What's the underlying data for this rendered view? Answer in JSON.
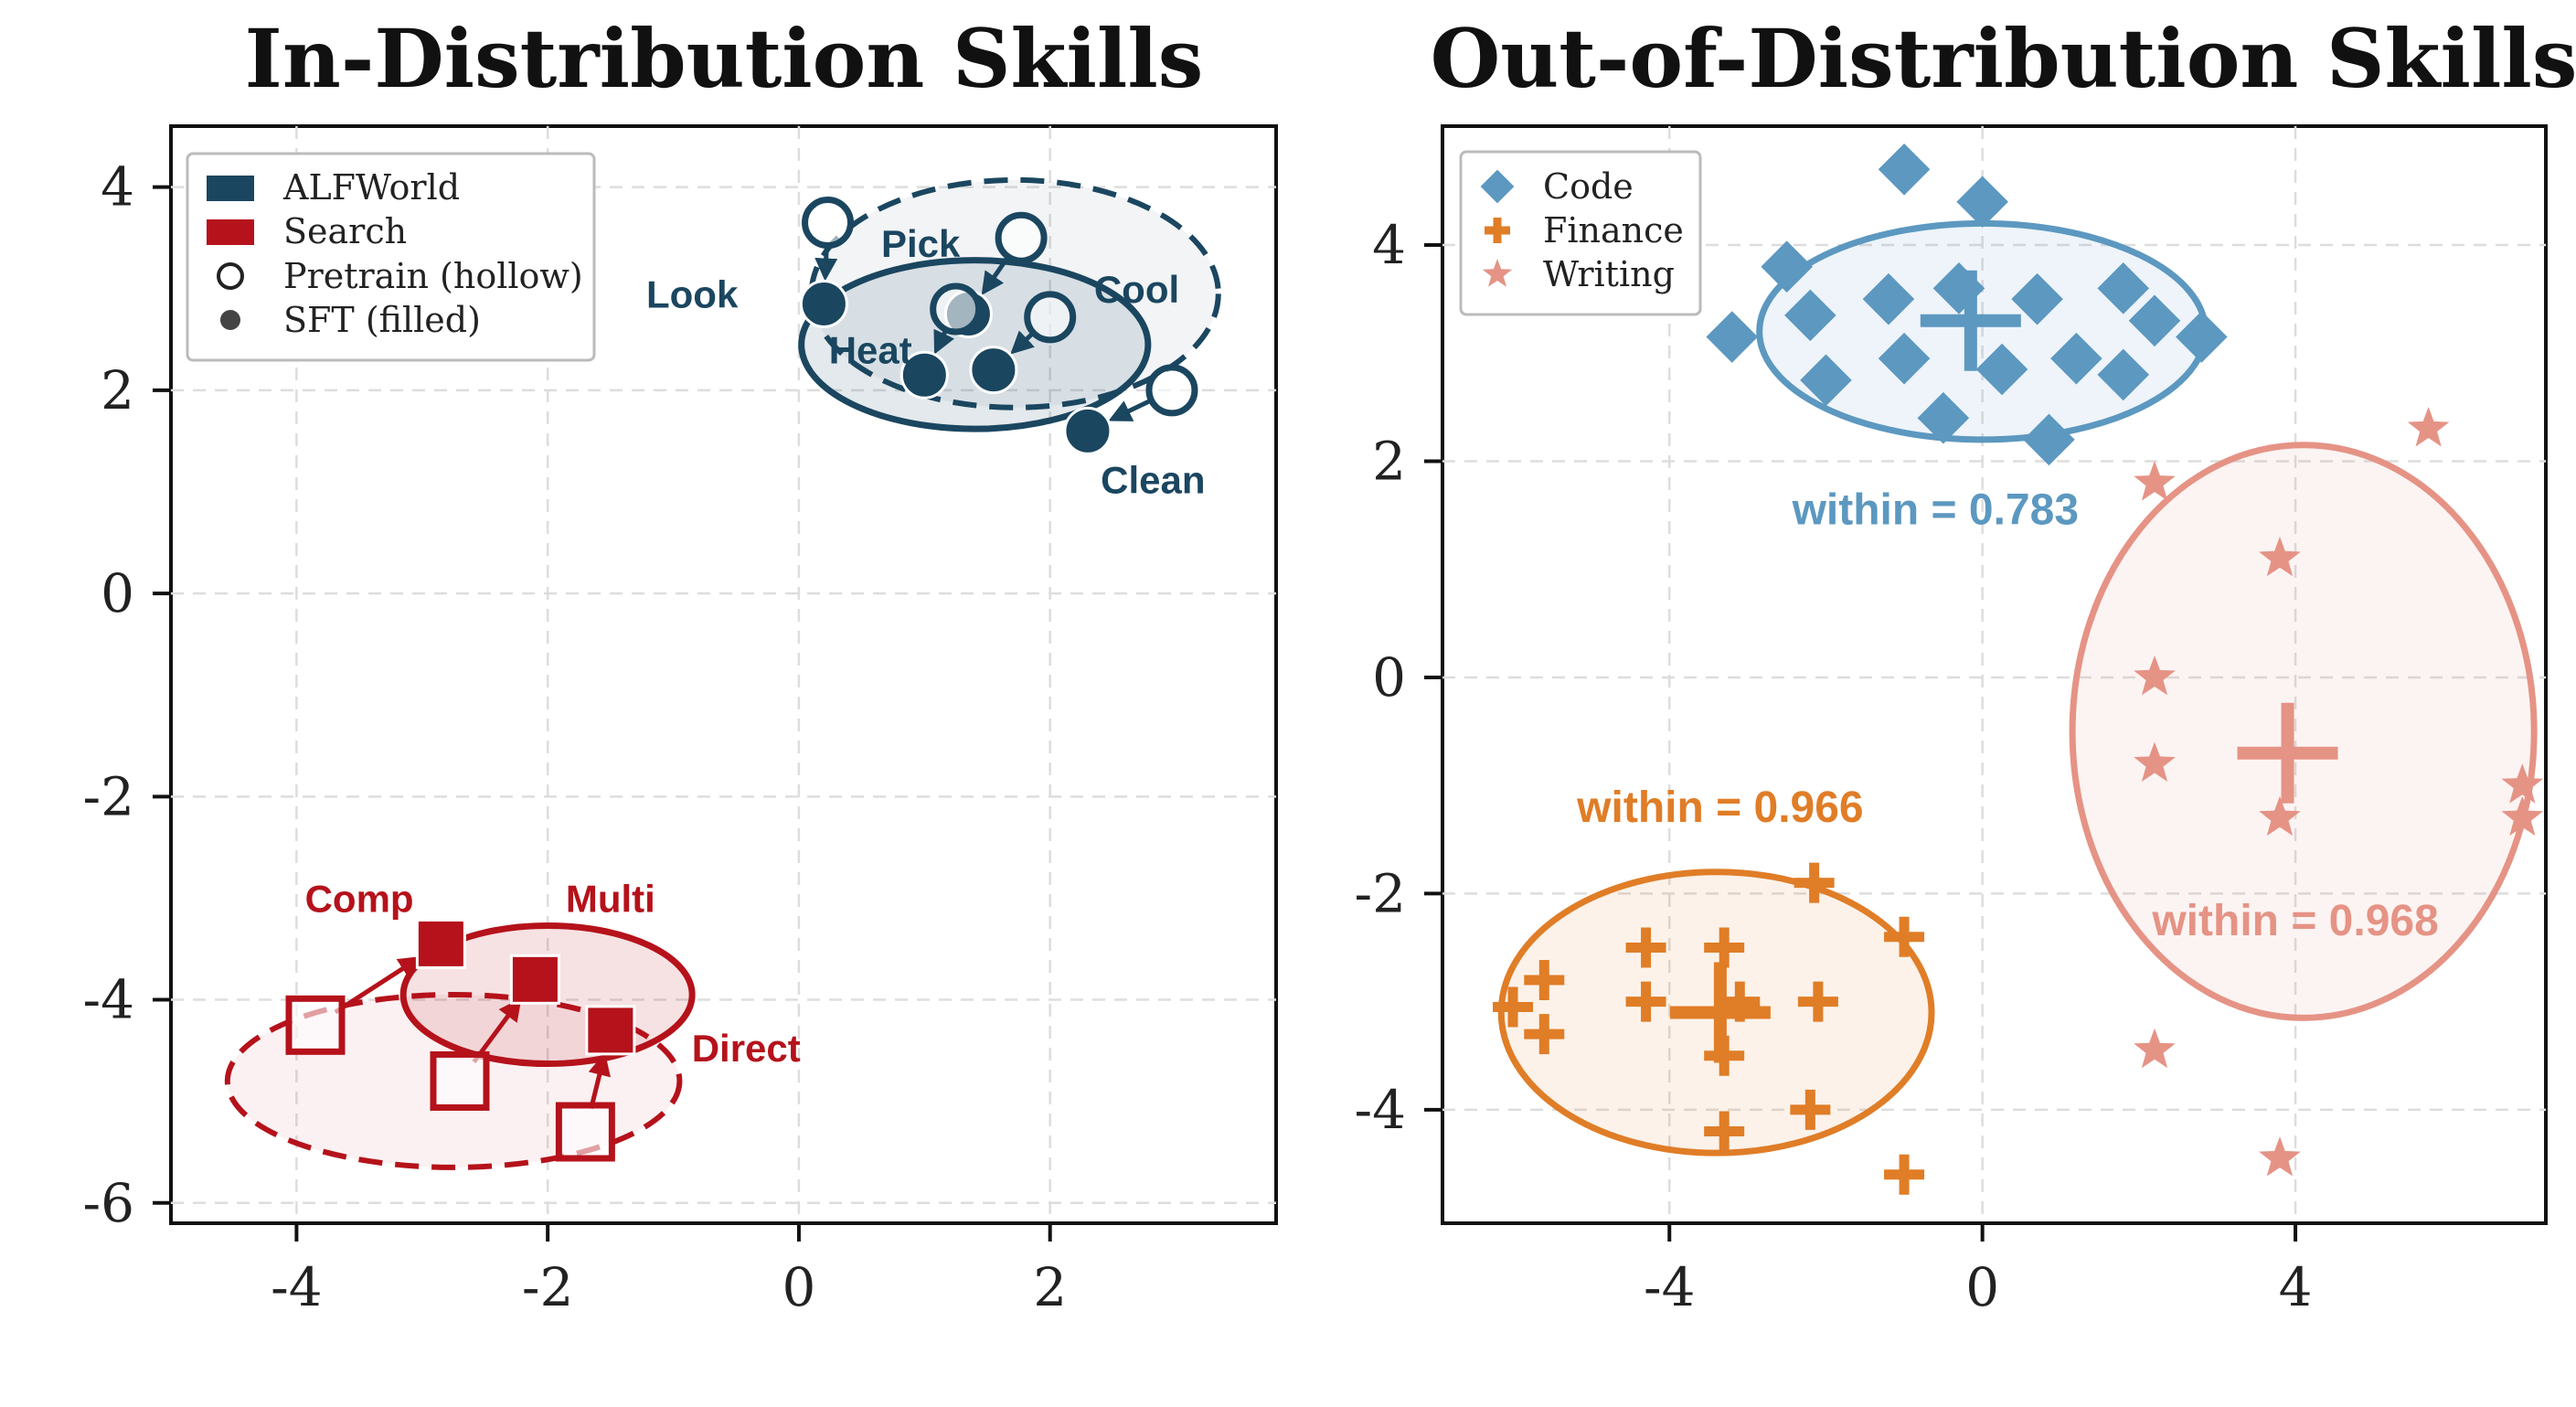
{
  "chart_data": [
    {
      "type": "scatter",
      "title": "In-Distribution Skills",
      "xlabel": "",
      "ylabel": "",
      "xlim": [
        -5,
        3.8
      ],
      "ylim": [
        -6.2,
        4.6
      ],
      "xticks": [
        -4,
        -2,
        0,
        2
      ],
      "xtick_labels": [
        "-4",
        "-2",
        "0",
        "2"
      ],
      "yticks": [
        4,
        2,
        0,
        -2,
        -4,
        -6
      ],
      "ytick_labels": [
        "4",
        "2",
        "0",
        "-2",
        "-4",
        "-6"
      ],
      "grid": true,
      "legend_position": "top-left",
      "legend": [
        {
          "label": "ALFWorld",
          "symbol": "square",
          "color": "#1b4660"
        },
        {
          "label": "Search",
          "symbol": "square",
          "color": "#b5121b"
        },
        {
          "label": "Pretrain (hollow)",
          "symbol": "hollow-circle",
          "color": "#222222"
        },
        {
          "label": "SFT (filled)",
          "symbol": "filled-circle",
          "color": "#444444"
        }
      ],
      "groups": [
        {
          "name": "ALFWorld",
          "color": "#1b4660",
          "marker": "circle",
          "pretrain_ellipse": {
            "cx": 1.72,
            "cy": 2.95,
            "rx": 1.62,
            "ry": 1.12
          },
          "sft_ellipse": {
            "cx": 1.4,
            "cy": 2.45,
            "rx": 1.38,
            "ry": 0.83
          },
          "skills": [
            {
              "label": "Pick",
              "pretrain": [
                1.77,
                3.5
              ],
              "sft": [
                1.35,
                2.75
              ],
              "label_pos": [
                0.97,
                3.45
              ]
            },
            {
              "label": "Cool",
              "pretrain": [
                2.0,
                2.72
              ],
              "sft": [
                1.55,
                2.2
              ],
              "label_pos": [
                2.69,
                3.0
              ]
            },
            {
              "label": "Look",
              "pretrain": [
                0.23,
                3.65
              ],
              "sft": [
                0.2,
                2.85
              ],
              "label_pos": [
                -0.85,
                2.95
              ]
            },
            {
              "label": "Heat",
              "pretrain": [
                1.25,
                2.8
              ],
              "sft": [
                1.0,
                2.15
              ],
              "label_pos": [
                0.57,
                2.4
              ]
            },
            {
              "label": "Clean",
              "pretrain": [
                2.97,
                2.0
              ],
              "sft": [
                2.3,
                1.6
              ],
              "label_pos": [
                2.82,
                1.12
              ]
            }
          ]
        },
        {
          "name": "Search",
          "color": "#b5121b",
          "marker": "square",
          "pretrain_ellipse": {
            "cx": -2.75,
            "cy": -4.8,
            "rx": 1.8,
            "ry": 0.85
          },
          "sft_ellipse": {
            "cx": -2.0,
            "cy": -3.95,
            "rx": 1.15,
            "ry": 0.68
          },
          "skills": [
            {
              "label": "Comp",
              "pretrain": [
                -3.85,
                -4.25
              ],
              "sft": [
                -2.85,
                -3.45
              ],
              "label_pos": [
                -3.5,
                -3.0
              ]
            },
            {
              "label": "Multi",
              "pretrain": [
                -2.7,
                -4.8
              ],
              "sft": [
                -2.1,
                -3.8
              ],
              "label_pos": [
                -1.5,
                -3.0
              ]
            },
            {
              "label": "Direct",
              "pretrain": [
                -1.7,
                -5.3
              ],
              "sft": [
                -1.5,
                -4.3
              ],
              "label_pos": [
                -0.42,
                -4.47
              ]
            }
          ]
        }
      ]
    },
    {
      "type": "scatter",
      "title": "Out-of-Distribution Skills",
      "xlabel": "",
      "ylabel": "",
      "xlim": [
        -6.9,
        7.2
      ],
      "ylim": [
        -5.05,
        5.1
      ],
      "xticks": [
        -4,
        0,
        4
      ],
      "xtick_labels": [
        "-4",
        "0",
        "4"
      ],
      "yticks": [
        4,
        2,
        0,
        -2,
        -4
      ],
      "ytick_labels": [
        "4",
        "2",
        "0",
        "-2",
        "-4"
      ],
      "grid": true,
      "legend_position": "top-left",
      "legend": [
        {
          "label": "Code",
          "symbol": "diamond",
          "color": "#5c98c0"
        },
        {
          "label": "Finance",
          "symbol": "plus",
          "color": "#e07d27"
        },
        {
          "label": "Writing",
          "symbol": "star",
          "color": "#e59385"
        }
      ],
      "series": [
        {
          "name": "Code",
          "color": "#5c98c0",
          "marker": "diamond",
          "centroid": [
            -0.15,
            3.3
          ],
          "ellipse": {
            "cx": 0.0,
            "cy": 3.2,
            "rx": 2.85,
            "ry": 1.0
          },
          "within_label": "within = 0.783",
          "within_pos": [
            -0.6,
            1.55
          ],
          "points": [
            [
              -1.0,
              4.7
            ],
            [
              0.0,
              4.4
            ],
            [
              -2.5,
              3.8
            ],
            [
              -2.2,
              3.35
            ],
            [
              -3.2,
              3.15
            ],
            [
              -1.2,
              3.5
            ],
            [
              -0.3,
              3.6
            ],
            [
              0.7,
              3.5
            ],
            [
              1.8,
              3.6
            ],
            [
              2.2,
              3.3
            ],
            [
              2.8,
              3.15
            ],
            [
              -1.0,
              2.95
            ],
            [
              0.25,
              2.85
            ],
            [
              1.2,
              2.95
            ],
            [
              1.8,
              2.8
            ],
            [
              -2.0,
              2.75
            ],
            [
              -0.5,
              2.4
            ],
            [
              0.85,
              2.2
            ]
          ]
        },
        {
          "name": "Finance",
          "color": "#e07d27",
          "marker": "plus",
          "centroid": [
            -3.35,
            -3.1
          ],
          "ellipse": {
            "cx": -3.4,
            "cy": -3.1,
            "rx": 2.75,
            "ry": 1.3
          },
          "within_label": "within = 0.966",
          "within_pos": [
            -3.35,
            -1.2
          ],
          "points": [
            [
              -2.15,
              -1.9
            ],
            [
              -1.0,
              -2.4
            ],
            [
              -4.3,
              -2.5
            ],
            [
              -3.3,
              -2.5
            ],
            [
              -5.6,
              -2.8
            ],
            [
              -5.6,
              -3.3
            ],
            [
              -6.0,
              -3.05
            ],
            [
              -4.3,
              -3.0
            ],
            [
              -3.1,
              -3.0
            ],
            [
              -2.1,
              -3.0
            ],
            [
              -3.3,
              -3.5
            ],
            [
              -2.2,
              -4.0
            ],
            [
              -3.3,
              -4.2
            ],
            [
              -1.0,
              -4.6
            ]
          ]
        },
        {
          "name": "Writing",
          "color": "#e59385",
          "marker": "star",
          "centroid": [
            3.9,
            -0.7
          ],
          "ellipse": {
            "cx": 4.1,
            "cy": -0.5,
            "rx": 2.95,
            "ry": 2.65
          },
          "within_label": "within = 0.968",
          "within_pos": [
            4.0,
            -2.25
          ],
          "points": [
            [
              5.7,
              2.3
            ],
            [
              2.2,
              1.8
            ],
            [
              3.8,
              1.1
            ],
            [
              2.2,
              0.0
            ],
            [
              2.2,
              -0.8
            ],
            [
              3.8,
              -1.3
            ],
            [
              6.9,
              -1.0
            ],
            [
              6.9,
              -1.3
            ],
            [
              2.2,
              -3.45
            ],
            [
              3.8,
              -4.45
            ]
          ]
        }
      ]
    }
  ]
}
